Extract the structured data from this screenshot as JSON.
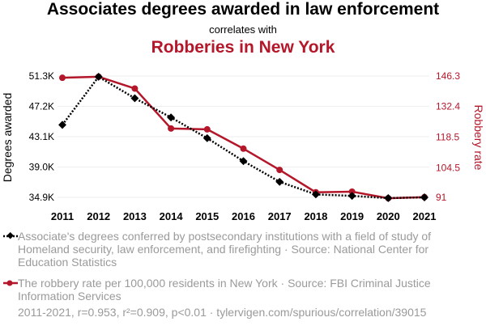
{
  "header": {
    "title": "Associates degrees awarded in law enforcement",
    "subtitle": "correlates with",
    "title2": "Robberies in New York"
  },
  "colors": {
    "series1": "#000000",
    "series2": "#b4172a",
    "grid": "#eeeeee",
    "muted_text": "#9a9a9a"
  },
  "chart_data": {
    "type": "line",
    "x": [
      2011,
      2012,
      2013,
      2014,
      2015,
      2016,
      2017,
      2018,
      2019,
      2020,
      2021
    ],
    "xtick_labels": [
      "2011",
      "2012",
      "2013",
      "2014",
      "2015",
      "2016",
      "2017",
      "2018",
      "2019",
      "2020",
      "2021"
    ],
    "series": [
      {
        "name": "Associate's degrees conferred",
        "axis": "left",
        "marker": "diamond",
        "line_style": "dotted",
        "values": [
          44700,
          51200,
          48300,
          45700,
          42900,
          39800,
          37000,
          35300,
          35100,
          34800,
          34900
        ]
      },
      {
        "name": "Robbery rate per 100,000 residents in New York",
        "axis": "right",
        "marker": "circle",
        "line_style": "solid",
        "values": [
          145.5,
          146.0,
          140.6,
          122.4,
          122.0,
          113.2,
          103.5,
          93.3,
          93.6,
          90.6,
          91.1
        ]
      }
    ],
    "ylabel_left": "Degrees awarded",
    "ylabel_right": "Robbery rate",
    "ylim_left": [
      34900,
      51300
    ],
    "ylim_right": [
      91,
      146.3
    ],
    "yticks_left": [
      34900,
      39000,
      43100,
      47200,
      51300
    ],
    "ytick_labels_left": [
      "34.9K",
      "39.0K",
      "43.1K",
      "47.2K",
      "51.3K"
    ],
    "yticks_right": [
      91,
      104.5,
      118.5,
      132.4,
      146.3
    ],
    "ytick_labels_right": [
      "91",
      "104.5",
      "118.5",
      "132.4",
      "146.3"
    ],
    "grid": true
  },
  "legend": {
    "series1_text": "Associate's degrees conferred by postsecondary institutions with a field of study of Homeland security, law enforcement, and firefighting · Source: National Center for Education Statistics",
    "series2_text": "The robbery rate per 100,000 residents in New York · Source: FBI Criminal Justice Information Services"
  },
  "footer": {
    "text": "2011-2021, r=0.953, r²=0.909, p<0.01 · tylervigen.com/spurious/correlation/39015"
  }
}
